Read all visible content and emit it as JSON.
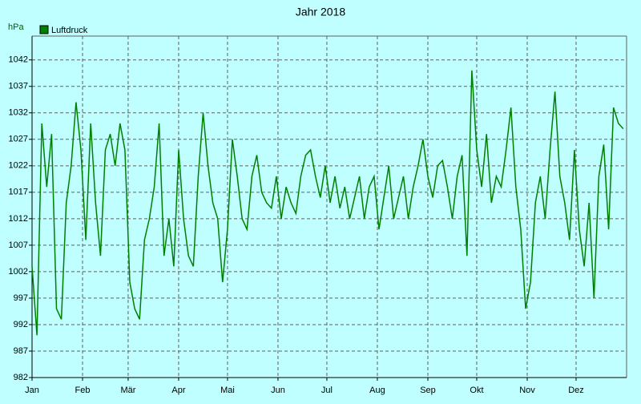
{
  "chart_data": {
    "type": "line",
    "title": "Jahr 2018",
    "y_label": "hPa",
    "xlim": [
      0,
      365
    ],
    "xticks": [
      {
        "value": 0,
        "label": "Jan"
      },
      {
        "value": 31,
        "label": "Feb"
      },
      {
        "value": 59,
        "label": "Mär"
      },
      {
        "value": 90,
        "label": "Apr"
      },
      {
        "value": 120,
        "label": "Mai"
      },
      {
        "value": 151,
        "label": "Jun"
      },
      {
        "value": 181,
        "label": "Jul"
      },
      {
        "value": 212,
        "label": "Aug"
      },
      {
        "value": 243,
        "label": "Sep"
      },
      {
        "value": 273,
        "label": "Okt"
      },
      {
        "value": 304,
        "label": "Nov"
      },
      {
        "value": 334,
        "label": "Dez"
      }
    ],
    "ylim": [
      982,
      1046.5
    ],
    "yticks": [
      982,
      987,
      992,
      997,
      1002,
      1007,
      1012,
      1017,
      1022,
      1027,
      1032,
      1037,
      1042
    ],
    "grid": true,
    "legend": "top-left",
    "x": [
      0,
      3,
      6,
      9,
      12,
      15,
      18,
      21,
      24,
      27,
      30,
      33,
      36,
      39,
      42,
      45,
      48,
      51,
      54,
      57,
      60,
      63,
      66,
      69,
      72,
      75,
      78,
      81,
      84,
      87,
      90,
      93,
      96,
      99,
      102,
      105,
      108,
      111,
      114,
      117,
      120,
      123,
      126,
      129,
      132,
      135,
      138,
      141,
      144,
      147,
      150,
      153,
      156,
      159,
      162,
      165,
      168,
      171,
      174,
      177,
      180,
      183,
      186,
      189,
      192,
      195,
      198,
      201,
      204,
      207,
      210,
      213,
      216,
      219,
      222,
      225,
      228,
      231,
      234,
      237,
      240,
      243,
      246,
      249,
      252,
      255,
      258,
      261,
      264,
      267,
      270,
      273,
      276,
      279,
      282,
      285,
      288,
      291,
      294,
      297,
      300,
      303,
      306,
      309,
      312,
      315,
      318,
      321,
      324,
      327,
      330,
      333,
      336,
      339,
      342,
      345,
      348,
      351,
      354,
      357,
      360,
      363
    ],
    "series": [
      {
        "name": "Luftdruck",
        "color": "#008000",
        "values": [
          1003,
          990,
          1030,
          1018,
          1028,
          995,
          993,
          1015,
          1022,
          1034,
          1025,
          1008,
          1030,
          1015,
          1005,
          1025,
          1028,
          1022,
          1030,
          1025,
          1000,
          995,
          993,
          1008,
          1012,
          1018,
          1030,
          1005,
          1012,
          1003,
          1025,
          1012,
          1005,
          1003,
          1020,
          1032,
          1022,
          1015,
          1012,
          1000,
          1010,
          1027,
          1020,
          1012,
          1010,
          1020,
          1024,
          1017,
          1015,
          1014,
          1020,
          1012,
          1018,
          1015,
          1013,
          1020,
          1024,
          1025,
          1020,
          1016,
          1022,
          1015,
          1020,
          1014,
          1018,
          1012,
          1016,
          1020,
          1012,
          1018,
          1020,
          1010,
          1016,
          1022,
          1012,
          1016,
          1020,
          1012,
          1018,
          1022,
          1027,
          1020,
          1016,
          1022,
          1023,
          1018,
          1012,
          1020,
          1024,
          1005,
          1040,
          1025,
          1018,
          1028,
          1015,
          1020,
          1018,
          1025,
          1033,
          1018,
          1010,
          995,
          1000,
          1015,
          1020,
          1012,
          1025,
          1036,
          1020,
          1015,
          1008,
          1025,
          1010,
          1003,
          1015,
          997,
          1020,
          1026,
          1010,
          1033,
          1030,
          1029
        ]
      }
    ]
  }
}
